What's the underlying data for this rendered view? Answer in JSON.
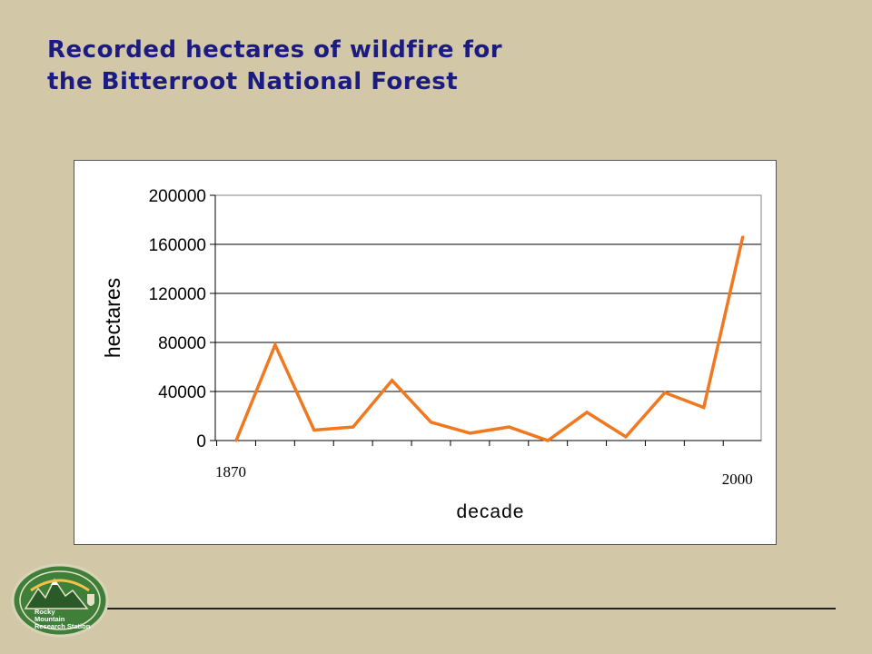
{
  "slide": {
    "title_line1": "Recorded hectares of wildfire for",
    "title_line2": "the Bitterroot National Forest"
  },
  "logo": {
    "line1": "Rocky",
    "line2": "Mountain",
    "line3": "Research Station"
  },
  "colors": {
    "background": "#d2c8a8",
    "title": "#1b1b80",
    "series": "#f07820",
    "logo_green": "#3f7f3a"
  },
  "chart_data": {
    "type": "line",
    "xlabel": "decade",
    "ylabel": "hectares",
    "ylim": [
      0,
      200000
    ],
    "yticks": [
      "200000",
      "160000",
      "120000",
      "80000",
      "40000",
      "0"
    ],
    "x_labels": [
      {
        "decade": 1870,
        "text": "1870"
      },
      {
        "decade": 2000,
        "text": "2000"
      }
    ],
    "grid": true,
    "legend": "none",
    "x": [
      1870,
      1880,
      1890,
      1900,
      1910,
      1920,
      1930,
      1940,
      1950,
      1960,
      1970,
      1980,
      1990,
      2000
    ],
    "series": [
      {
        "values": [
          0,
          78000,
          8500,
          11000,
          49000,
          15000,
          6000,
          11000,
          0,
          23000,
          3000,
          39000,
          27000,
          166000
        ]
      }
    ]
  }
}
